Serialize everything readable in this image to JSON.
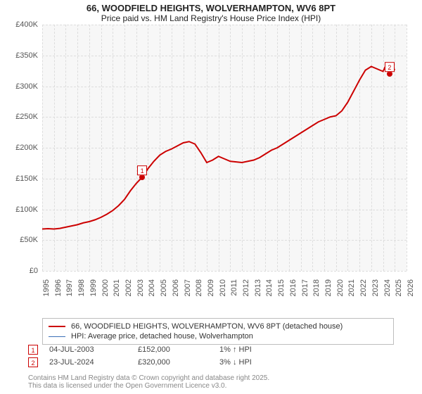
{
  "title": {
    "line1": "66, WOODFIELD HEIGHTS, WOLVERHAMPTON, WV6 8PT",
    "line2": "Price paid vs. HM Land Registry's House Price Index (HPI)"
  },
  "chart": {
    "type": "line",
    "background_color": "#f7f7f7",
    "grid_color": "#dddddd",
    "x_axis": {
      "min": 1995,
      "max": 2026,
      "ticks": [
        1995,
        1996,
        1997,
        1998,
        1999,
        2000,
        2001,
        2002,
        2003,
        2004,
        2005,
        2006,
        2007,
        2008,
        2009,
        2010,
        2011,
        2012,
        2013,
        2014,
        2015,
        2016,
        2017,
        2018,
        2019,
        2020,
        2021,
        2022,
        2023,
        2024,
        2025,
        2026
      ],
      "label_fontsize": 11,
      "rotation": -90
    },
    "y_axis": {
      "min": 0,
      "max": 400000,
      "ticks": [
        0,
        50000,
        100000,
        150000,
        200000,
        250000,
        300000,
        350000,
        400000
      ],
      "tick_labels": [
        "£0",
        "£50K",
        "£100K",
        "£150K",
        "£200K",
        "£250K",
        "£300K",
        "£350K",
        "£400K"
      ],
      "label_fontsize": 11
    },
    "series": [
      {
        "name": "66, WOODFIELD HEIGHTS, WOLVERHAMPTON, WV6 8PT (detached house)",
        "color": "#cc0000",
        "line_width": 2,
        "points": [
          [
            1995.0,
            68000
          ],
          [
            1995.5,
            68500
          ],
          [
            1996.0,
            68000
          ],
          [
            1996.5,
            69000
          ],
          [
            1997.0,
            71000
          ],
          [
            1997.5,
            73000
          ],
          [
            1998.0,
            75000
          ],
          [
            1998.5,
            78000
          ],
          [
            1999.0,
            80000
          ],
          [
            1999.5,
            83000
          ],
          [
            2000.0,
            87000
          ],
          [
            2000.5,
            92000
          ],
          [
            2001.0,
            98000
          ],
          [
            2001.5,
            106000
          ],
          [
            2002.0,
            116000
          ],
          [
            2002.5,
            130000
          ],
          [
            2003.0,
            142000
          ],
          [
            2003.5,
            152000
          ],
          [
            2004.0,
            166000
          ],
          [
            2004.5,
            178000
          ],
          [
            2005.0,
            188000
          ],
          [
            2005.5,
            194000
          ],
          [
            2006.0,
            198000
          ],
          [
            2006.5,
            203000
          ],
          [
            2007.0,
            208000
          ],
          [
            2007.5,
            210000
          ],
          [
            2008.0,
            206000
          ],
          [
            2008.5,
            192000
          ],
          [
            2009.0,
            176000
          ],
          [
            2009.5,
            180000
          ],
          [
            2010.0,
            186000
          ],
          [
            2010.5,
            182000
          ],
          [
            2011.0,
            178000
          ],
          [
            2011.5,
            177000
          ],
          [
            2012.0,
            176000
          ],
          [
            2012.5,
            178000
          ],
          [
            2013.0,
            180000
          ],
          [
            2013.5,
            184000
          ],
          [
            2014.0,
            190000
          ],
          [
            2014.5,
            196000
          ],
          [
            2015.0,
            200000
          ],
          [
            2015.5,
            206000
          ],
          [
            2016.0,
            212000
          ],
          [
            2016.5,
            218000
          ],
          [
            2017.0,
            224000
          ],
          [
            2017.5,
            230000
          ],
          [
            2018.0,
            236000
          ],
          [
            2018.5,
            242000
          ],
          [
            2019.0,
            246000
          ],
          [
            2019.5,
            250000
          ],
          [
            2020.0,
            252000
          ],
          [
            2020.5,
            260000
          ],
          [
            2021.0,
            274000
          ],
          [
            2021.5,
            292000
          ],
          [
            2022.0,
            310000
          ],
          [
            2022.5,
            326000
          ],
          [
            2023.0,
            332000
          ],
          [
            2023.5,
            328000
          ],
          [
            2024.0,
            324000
          ],
          [
            2024.3,
            336000
          ],
          [
            2024.56,
            320000
          ],
          [
            2024.8,
            332000
          ],
          [
            2025.0,
            326000
          ]
        ]
      },
      {
        "name": "HPI: Average price, detached house, Wolverhampton",
        "color": "#3b6fb6",
        "line_width": 1.2,
        "points": []
      }
    ],
    "markers": [
      {
        "id": "1",
        "x": 2003.51,
        "y": 152000,
        "dot_color": "#cc0000"
      },
      {
        "id": "2",
        "x": 2024.56,
        "y": 320000,
        "dot_color": "#cc0000"
      }
    ]
  },
  "legend": {
    "items": [
      {
        "label": "66, WOODFIELD HEIGHTS, WOLVERHAMPTON, WV6 8PT (detached house)",
        "color": "#cc0000",
        "width": 2
      },
      {
        "label": "HPI: Average price, detached house, Wolverhampton",
        "color": "#3b6fb6",
        "width": 1
      }
    ]
  },
  "events": [
    {
      "id": "1",
      "date": "04-JUL-2003",
      "price": "£152,000",
      "delta": "1% ↑ HPI"
    },
    {
      "id": "2",
      "date": "23-JUL-2024",
      "price": "£320,000",
      "delta": "3% ↓ HPI"
    }
  ],
  "footer": {
    "line1": "Contains HM Land Registry data © Crown copyright and database right 2025.",
    "line2": "This data is licensed under the Open Government Licence v3.0."
  }
}
